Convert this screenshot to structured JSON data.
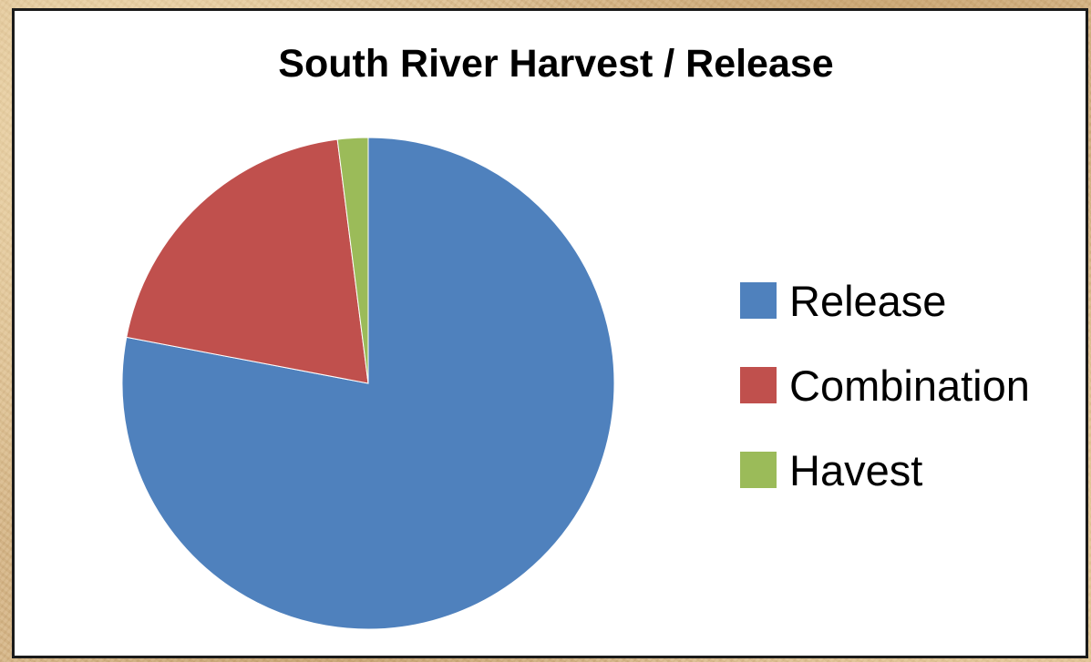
{
  "chart_data": {
    "type": "pie",
    "title": "South River Harvest / Release",
    "legend_position": "right",
    "slices": [
      {
        "label": "Release",
        "value": 78,
        "color": "#4F81BD"
      },
      {
        "label": "Combination",
        "value": 20,
        "color": "#C0504D"
      },
      {
        "label": "Havest",
        "value": 2,
        "color": "#9BBB59"
      }
    ]
  }
}
